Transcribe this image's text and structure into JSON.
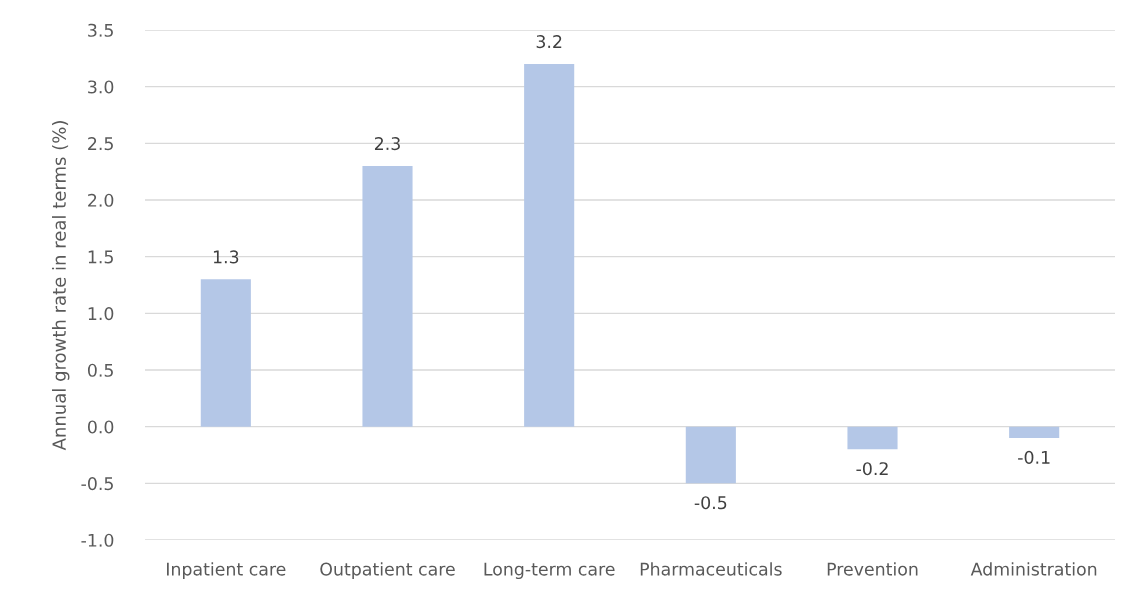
{
  "chart_data": {
    "type": "bar",
    "ylabel": "Annual growth rate in real terms (%)",
    "categories": [
      "Inpatient care",
      "Outpatient care",
      "Long-term care",
      "Pharmaceuticals",
      "Prevention",
      "Administration"
    ],
    "values": [
      1.3,
      2.3,
      3.2,
      -0.5,
      -0.2,
      -0.1
    ],
    "color": "#b4c7e7",
    "ylim": [
      -1.0,
      3.5
    ],
    "yticks": [
      {
        "value": -1.0,
        "label": "-1.0"
      },
      {
        "value": -0.5,
        "label": "-0.5"
      },
      {
        "value": 0,
        "label": "0.0"
      },
      {
        "value": 0.5,
        "label": "0.5"
      },
      {
        "value": 1.0,
        "label": "1.0"
      },
      {
        "value": 1.5,
        "label": "1.5"
      },
      {
        "value": 2.0,
        "label": "2.0"
      },
      {
        "value": 2.5,
        "label": "2.5"
      },
      {
        "value": 3.0,
        "label": "3.0"
      },
      {
        "value": 3.5,
        "label": "3.5"
      }
    ],
    "grid": "y",
    "data_labels": true
  }
}
